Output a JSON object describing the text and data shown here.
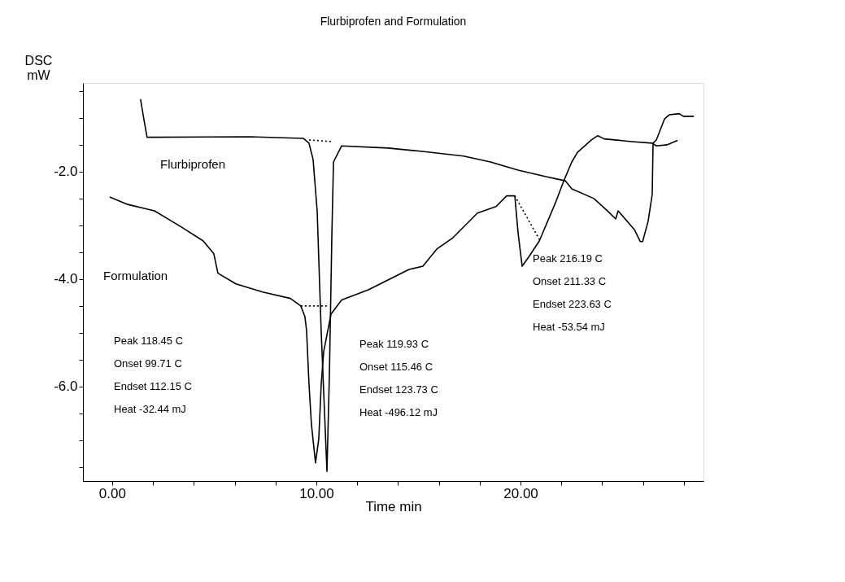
{
  "chart_data": {
    "type": "line",
    "title": "Flurbiprofen and Formulation",
    "xlabel": "Time min",
    "ylabel": "DSC mW",
    "xlim": [
      -1.43,
      28.96
    ],
    "ylim": [
      -7.76,
      -0.35
    ],
    "xticks": [
      {
        "value": 0,
        "label": "0.00"
      },
      {
        "value": 2,
        "label": null
      },
      {
        "value": 4,
        "label": null
      },
      {
        "value": 6,
        "label": null
      },
      {
        "value": 8,
        "label": null
      },
      {
        "value": 10,
        "label": "10.00"
      },
      {
        "value": 12,
        "label": null
      },
      {
        "value": 14,
        "label": null
      },
      {
        "value": 16,
        "label": null
      },
      {
        "value": 18,
        "label": null
      },
      {
        "value": 20,
        "label": "20.00"
      },
      {
        "value": 22,
        "label": null
      },
      {
        "value": 24,
        "label": null
      },
      {
        "value": 26,
        "label": null
      },
      {
        "value": 28,
        "label": null
      }
    ],
    "yticks": [
      {
        "value": -7.5,
        "label": null
      },
      {
        "value": -7,
        "label": null
      },
      {
        "value": -6.5,
        "label": null
      },
      {
        "value": -6,
        "label": "-6.0"
      },
      {
        "value": -5.5,
        "label": null
      },
      {
        "value": -5,
        "label": null
      },
      {
        "value": -4.5,
        "label": null
      },
      {
        "value": -4,
        "label": "-4.0"
      },
      {
        "value": -3.5,
        "label": null
      },
      {
        "value": -3,
        "label": null
      },
      {
        "value": -2.5,
        "label": null
      },
      {
        "value": -2,
        "label": "-2.0"
      },
      {
        "value": -1.5,
        "label": null
      },
      {
        "value": -1,
        "label": null
      },
      {
        "value": -0.5,
        "label": null
      }
    ],
    "grid": false,
    "marker": "none",
    "series": [
      {
        "name": "Flurbiprofen",
        "color": "#000000",
        "line_style": "solid",
        "x": [
          1.39,
          1.55,
          1.71,
          1.95,
          6.73,
          9.36,
          9.64,
          9.84,
          10.04,
          10.24,
          10.52,
          10.64,
          10.76,
          10.84,
          11.24,
          13.51,
          15.1,
          17.21,
          18.53,
          19.88,
          21.2,
          22.19,
          22.51,
          23.59,
          24.26,
          24.66,
          24.78,
          25.58,
          25.86,
          25.98,
          26.25,
          26.45,
          26.49,
          26.65,
          27.05,
          27.29,
          27.77,
          27.97,
          28.49
        ],
        "values": [
          -0.65,
          -1.02,
          -1.36,
          -1.36,
          -1.35,
          -1.38,
          -1.47,
          -1.77,
          -2.73,
          -5.0,
          -7.58,
          -5.76,
          -3.18,
          -1.82,
          -1.52,
          -1.56,
          -1.62,
          -1.71,
          -1.82,
          -1.97,
          -2.09,
          -2.17,
          -2.32,
          -2.5,
          -2.73,
          -2.88,
          -2.73,
          -3.08,
          -3.3,
          -3.3,
          -2.92,
          -2.42,
          -1.47,
          -1.41,
          -1.02,
          -0.94,
          -0.92,
          -0.97,
          -0.97
        ]
      },
      {
        "name": "Formulation",
        "color": "#000000",
        "line_style": "solid",
        "x": [
          -0.12,
          0.76,
          2.07,
          3.39,
          4.46,
          4.98,
          5.18,
          6.06,
          7.37,
          8.73,
          9.24,
          9.44,
          9.52,
          9.64,
          9.76,
          9.96,
          10.12,
          10.24,
          10.36,
          10.72,
          11.24,
          12.55,
          14.54,
          15.22,
          15.9,
          16.69,
          17.89,
          18.8,
          19.32,
          19.72,
          19.88,
          20.08,
          20.4,
          20.92,
          21.71,
          22.11,
          22.51,
          22.79,
          23.47,
          23.78,
          24.1,
          25.46,
          26.45,
          26.65,
          27.17,
          27.69
        ],
        "values": [
          -2.47,
          -2.61,
          -2.73,
          -3.03,
          -3.29,
          -3.53,
          -3.89,
          -4.09,
          -4.24,
          -4.36,
          -4.5,
          -4.7,
          -4.95,
          -5.95,
          -6.71,
          -7.42,
          -6.97,
          -5.95,
          -5.35,
          -4.65,
          -4.39,
          -4.2,
          -3.82,
          -3.76,
          -3.44,
          -3.23,
          -2.77,
          -2.65,
          -2.45,
          -2.45,
          -3.14,
          -3.76,
          -3.59,
          -3.29,
          -2.58,
          -2.18,
          -1.82,
          -1.64,
          -1.41,
          -1.33,
          -1.39,
          -1.44,
          -1.47,
          -1.52,
          -1.5,
          -1.42
        ]
      },
      {
        "color": "#000000",
        "line_style": "dotted",
        "x": [
          9.64,
          10.76
        ],
        "values": [
          -1.41,
          -1.44
        ]
      },
      {
        "color": "#000000",
        "line_style": "dotted",
        "x": [
          9.24,
          10.63
        ],
        "values": [
          -4.5,
          -4.5
        ]
      },
      {
        "color": "#000000",
        "line_style": "dotted",
        "x": [
          19.72,
          20.92
        ],
        "values": [
          -2.45,
          -3.26
        ]
      }
    ],
    "annotations": [
      "Peak 118.45 C",
      "Onset 99.71 C",
      "Endset 112.15 C",
      "Heat -32.44 mJ",
      "Peak 119.93 C",
      "Onset 115.46 C",
      "Endset 123.73 C",
      "Heat -496.12 mJ",
      "Peak 216.19 C",
      "Onset 211.33 C",
      "Endset 223.63 C",
      "Heat -53.54 mJ"
    ]
  }
}
